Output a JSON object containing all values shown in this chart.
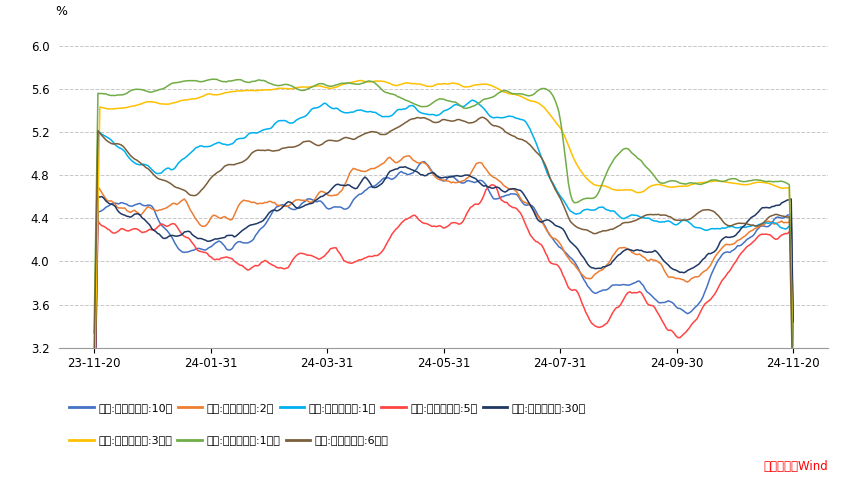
{
  "ylabel": "%",
  "ylim": [
    3.2,
    6.2
  ],
  "yticks": [
    3.2,
    3.6,
    4.0,
    4.4,
    4.8,
    5.2,
    5.6,
    6.0
  ],
  "xtick_labels": [
    "23-11-20",
    "24-01-31",
    "24-03-31",
    "24-05-31",
    "24-07-31",
    "24-09-30",
    "24-11-20"
  ],
  "background_color": "#ffffff",
  "grid_color": "#c8c8c8",
  "source_text": "数据来源：Wind",
  "source_color": "#ff0000",
  "legend_items": [
    {
      "label": "美国:国债收益率:10年",
      "color": "#4472c4"
    },
    {
      "label": "美国:国债收益率:2年",
      "color": "#ed7d31"
    },
    {
      "label": "美国:国债收益率:1年",
      "color": "#00b0f0"
    },
    {
      "label": "美国:国债收益率:5年",
      "color": "#ff4444"
    },
    {
      "label": "美国:国债收益率:30年",
      "color": "#1f3864"
    },
    {
      "label": "美国:国债收益率:3个月",
      "color": "#ffc000"
    },
    {
      "label": "美国:国债收益率:1个月",
      "color": "#70ad47"
    },
    {
      "label": "美国:国债收益率:6个月",
      "color": "#7b5e3a"
    }
  ]
}
